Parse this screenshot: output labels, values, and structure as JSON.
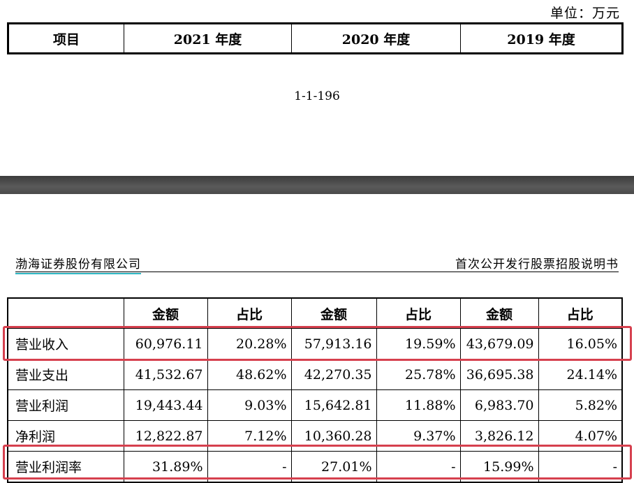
{
  "unit_label": "单位：万元",
  "top_table": {
    "headers": [
      "项目",
      "2021 年度",
      "2020 年度",
      "2019 年度"
    ]
  },
  "page_number": "1-1-196",
  "page_header": {
    "company": "渤海证券股份有限公司",
    "document_title": "首次公开发行股票招股说明书"
  },
  "main_table": {
    "headers": [
      "",
      "金额",
      "占比",
      "金额",
      "占比",
      "金额",
      "占比"
    ],
    "rows": [
      [
        "营业收入",
        "60,976.11",
        "20.28%",
        "57,913.16",
        "19.59%",
        "43,679.09",
        "16.05%"
      ],
      [
        "营业支出",
        "41,532.67",
        "48.62%",
        "42,270.35",
        "25.78%",
        "36,695.38",
        "24.14%"
      ],
      [
        "营业利润",
        "19,443.44",
        "9.03%",
        "15,642.81",
        "11.88%",
        "6,983.70",
        "5.82%"
      ],
      [
        "净利润",
        "12,822.87",
        "7.12%",
        "10,360.28",
        "9.37%",
        "3,826.12",
        "4.07%"
      ],
      [
        "营业利润率",
        "31.89%",
        "-",
        "27.01%",
        "-",
        "15.99%",
        "-"
      ]
    ]
  },
  "colors": {
    "highlight": "#d6404e",
    "company_underline": "#2bb3c0"
  }
}
